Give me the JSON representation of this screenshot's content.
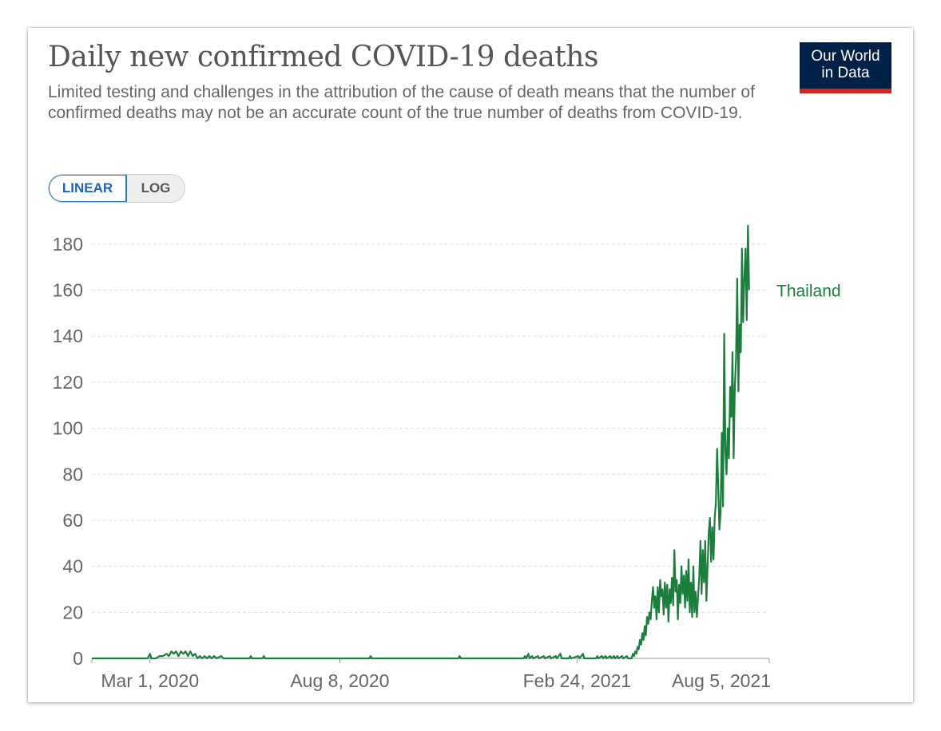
{
  "title": "Daily new confirmed COVID-19 deaths",
  "subtitle": "Limited testing and challenges in the attribution of the cause of death means that the number of confirmed deaths may not be an accurate count of the true number of deaths from COVID-19.",
  "logo": {
    "line1": "Our World",
    "line2": "in Data"
  },
  "scale_toggle": {
    "linear_label": "LINEAR",
    "log_label": "LOG",
    "selected": "LINEAR"
  },
  "colors": {
    "series": "#1a7f3c",
    "grid": "#dddddd",
    "axis_text": "#666666",
    "logo_bg": "#002147",
    "logo_bar": "#ce261e"
  },
  "chart_data": {
    "type": "line",
    "title": "Daily new confirmed COVID-19 deaths",
    "xlabel": "",
    "ylabel": "",
    "ylim": [
      0,
      190
    ],
    "yticks": [
      0,
      20,
      40,
      60,
      80,
      100,
      120,
      140,
      160,
      180
    ],
    "xticks": [
      {
        "date": "2020-03-01",
        "label": "Mar 1, 2020"
      },
      {
        "date": "2020-08-08",
        "label": "Aug 8, 2020"
      },
      {
        "date": "2021-02-24",
        "label": "Feb 24, 2021"
      },
      {
        "date": "2021-08-05",
        "label": "Aug 5, 2021"
      }
    ],
    "xlim": [
      "2020-01-12",
      "2021-08-05"
    ],
    "grid": true,
    "legend": "inline-right",
    "series": [
      {
        "name": "Thailand",
        "points": [
          [
            "2020-01-12",
            0
          ],
          [
            "2020-02-28",
            0
          ],
          [
            "2020-03-01",
            2
          ],
          [
            "2020-03-02",
            0
          ],
          [
            "2020-03-06",
            0
          ],
          [
            "2020-03-09",
            1
          ],
          [
            "2020-03-12",
            1
          ],
          [
            "2020-03-15",
            2
          ],
          [
            "2020-03-17",
            1
          ],
          [
            "2020-03-19",
            3
          ],
          [
            "2020-03-21",
            2
          ],
          [
            "2020-03-23",
            3
          ],
          [
            "2020-03-25",
            1
          ],
          [
            "2020-03-27",
            3
          ],
          [
            "2020-03-29",
            2
          ],
          [
            "2020-03-31",
            3
          ],
          [
            "2020-04-02",
            1
          ],
          [
            "2020-04-04",
            3
          ],
          [
            "2020-04-06",
            1
          ],
          [
            "2020-04-08",
            2
          ],
          [
            "2020-04-10",
            0
          ],
          [
            "2020-04-12",
            1
          ],
          [
            "2020-04-14",
            0
          ],
          [
            "2020-04-16",
            1
          ],
          [
            "2020-04-18",
            0
          ],
          [
            "2020-04-20",
            1
          ],
          [
            "2020-04-22",
            0
          ],
          [
            "2020-04-24",
            1
          ],
          [
            "2020-04-26",
            0
          ],
          [
            "2020-04-30",
            1
          ],
          [
            "2020-05-02",
            0
          ],
          [
            "2020-05-24",
            0
          ],
          [
            "2020-05-25",
            1
          ],
          [
            "2020-05-26",
            0
          ],
          [
            "2020-06-04",
            0
          ],
          [
            "2020-06-05",
            1
          ],
          [
            "2020-06-06",
            0
          ],
          [
            "2020-09-02",
            0
          ],
          [
            "2020-09-03",
            1
          ],
          [
            "2020-09-04",
            0
          ],
          [
            "2020-11-16",
            0
          ],
          [
            "2020-11-17",
            1
          ],
          [
            "2020-11-18",
            0
          ],
          [
            "2021-01-10",
            0
          ],
          [
            "2021-01-11",
            1
          ],
          [
            "2021-01-12",
            0
          ],
          [
            "2021-01-14",
            2
          ],
          [
            "2021-01-15",
            0
          ],
          [
            "2021-01-17",
            1
          ],
          [
            "2021-01-18",
            0
          ],
          [
            "2021-01-22",
            1
          ],
          [
            "2021-01-23",
            0
          ],
          [
            "2021-01-27",
            1
          ],
          [
            "2021-01-28",
            0
          ],
          [
            "2021-02-01",
            1
          ],
          [
            "2021-02-02",
            0
          ],
          [
            "2021-02-06",
            1
          ],
          [
            "2021-02-07",
            0
          ],
          [
            "2021-02-10",
            2
          ],
          [
            "2021-02-11",
            0
          ],
          [
            "2021-02-17",
            0
          ],
          [
            "2021-02-18",
            1
          ],
          [
            "2021-02-19",
            0
          ],
          [
            "2021-02-25",
            1
          ],
          [
            "2021-02-26",
            0
          ],
          [
            "2021-03-01",
            2
          ],
          [
            "2021-03-02",
            0
          ],
          [
            "2021-03-12",
            0
          ],
          [
            "2021-03-13",
            1
          ],
          [
            "2021-03-14",
            0
          ],
          [
            "2021-03-17",
            1
          ],
          [
            "2021-03-18",
            0
          ],
          [
            "2021-03-20",
            1
          ],
          [
            "2021-03-21",
            0
          ],
          [
            "2021-03-24",
            1
          ],
          [
            "2021-03-25",
            0
          ],
          [
            "2021-03-27",
            1
          ],
          [
            "2021-03-28",
            0
          ],
          [
            "2021-03-30",
            1
          ],
          [
            "2021-03-31",
            0
          ],
          [
            "2021-04-03",
            1
          ],
          [
            "2021-04-04",
            0
          ],
          [
            "2021-04-07",
            1
          ],
          [
            "2021-04-08",
            0
          ],
          [
            "2021-04-11",
            0
          ],
          [
            "2021-04-12",
            2
          ],
          [
            "2021-04-13",
            1
          ],
          [
            "2021-04-14",
            3
          ],
          [
            "2021-04-15",
            2
          ],
          [
            "2021-04-16",
            5
          ],
          [
            "2021-04-17",
            4
          ],
          [
            "2021-04-18",
            8
          ],
          [
            "2021-04-19",
            6
          ],
          [
            "2021-04-20",
            11
          ],
          [
            "2021-04-21",
            8
          ],
          [
            "2021-04-22",
            14
          ],
          [
            "2021-04-23",
            10
          ],
          [
            "2021-04-24",
            18
          ],
          [
            "2021-04-25",
            15
          ],
          [
            "2021-04-26",
            20
          ],
          [
            "2021-04-27",
            17
          ],
          [
            "2021-04-28",
            25
          ],
          [
            "2021-04-29",
            31
          ],
          [
            "2021-04-30",
            22
          ],
          [
            "2021-05-01",
            27
          ],
          [
            "2021-05-02",
            17
          ],
          [
            "2021-05-03",
            31
          ],
          [
            "2021-05-04",
            20
          ],
          [
            "2021-05-05",
            34
          ],
          [
            "2021-05-06",
            27
          ],
          [
            "2021-05-07",
            30
          ],
          [
            "2021-05-08",
            19
          ],
          [
            "2021-05-09",
            33
          ],
          [
            "2021-05-10",
            22
          ],
          [
            "2021-05-11",
            32
          ],
          [
            "2021-05-12",
            16
          ],
          [
            "2021-05-13",
            30
          ],
          [
            "2021-05-14",
            24
          ],
          [
            "2021-05-15",
            35
          ],
          [
            "2021-05-16",
            23
          ],
          [
            "2021-05-17",
            47
          ],
          [
            "2021-05-18",
            29
          ],
          [
            "2021-05-19",
            34
          ],
          [
            "2021-05-20",
            17
          ],
          [
            "2021-05-21",
            32
          ],
          [
            "2021-05-22",
            24
          ],
          [
            "2021-05-23",
            40
          ],
          [
            "2021-05-24",
            28
          ],
          [
            "2021-05-25",
            36
          ],
          [
            "2021-05-26",
            22
          ],
          [
            "2021-05-27",
            38
          ],
          [
            "2021-05-28",
            25
          ],
          [
            "2021-05-29",
            43
          ],
          [
            "2021-05-30",
            20
          ],
          [
            "2021-05-31",
            33
          ],
          [
            "2021-06-01",
            18
          ],
          [
            "2021-06-02",
            40
          ],
          [
            "2021-06-03",
            20
          ],
          [
            "2021-06-04",
            29
          ],
          [
            "2021-06-05",
            18
          ],
          [
            "2021-06-06",
            27
          ],
          [
            "2021-06-07",
            36
          ],
          [
            "2021-06-08",
            51
          ],
          [
            "2021-06-09",
            28
          ],
          [
            "2021-06-10",
            47
          ],
          [
            "2021-06-11",
            33
          ],
          [
            "2021-06-12",
            51
          ],
          [
            "2021-06-13",
            25
          ],
          [
            "2021-06-14",
            40
          ],
          [
            "2021-06-15",
            55
          ],
          [
            "2021-06-16",
            61
          ],
          [
            "2021-06-17",
            42
          ],
          [
            "2021-06-18",
            57
          ],
          [
            "2021-06-19",
            43
          ],
          [
            "2021-06-20",
            61
          ],
          [
            "2021-06-21",
            68
          ],
          [
            "2021-06-22",
            91
          ],
          [
            "2021-06-23",
            75
          ],
          [
            "2021-06-24",
            56
          ],
          [
            "2021-06-25",
            64
          ],
          [
            "2021-06-26",
            98
          ],
          [
            "2021-06-27",
            66
          ],
          [
            "2021-06-28",
            141
          ],
          [
            "2021-06-29",
            90
          ],
          [
            "2021-06-30",
            80
          ],
          [
            "2021-07-01",
            100
          ],
          [
            "2021-07-02",
            87
          ],
          [
            "2021-07-03",
            118
          ],
          [
            "2021-07-04",
            105
          ],
          [
            "2021-07-05",
            133
          ],
          [
            "2021-07-06",
            87
          ],
          [
            "2021-07-07",
            118
          ],
          [
            "2021-07-08",
            130
          ],
          [
            "2021-07-09",
            165
          ],
          [
            "2021-07-10",
            116
          ],
          [
            "2021-07-11",
            145
          ],
          [
            "2021-07-12",
            133
          ],
          [
            "2021-07-13",
            178
          ],
          [
            "2021-07-14",
            146
          ],
          [
            "2021-07-15",
            165
          ],
          [
            "2021-07-16",
            178
          ],
          [
            "2021-07-17",
            147
          ],
          [
            "2021-07-18",
            188
          ],
          [
            "2021-07-19",
            160
          ]
        ]
      }
    ]
  }
}
